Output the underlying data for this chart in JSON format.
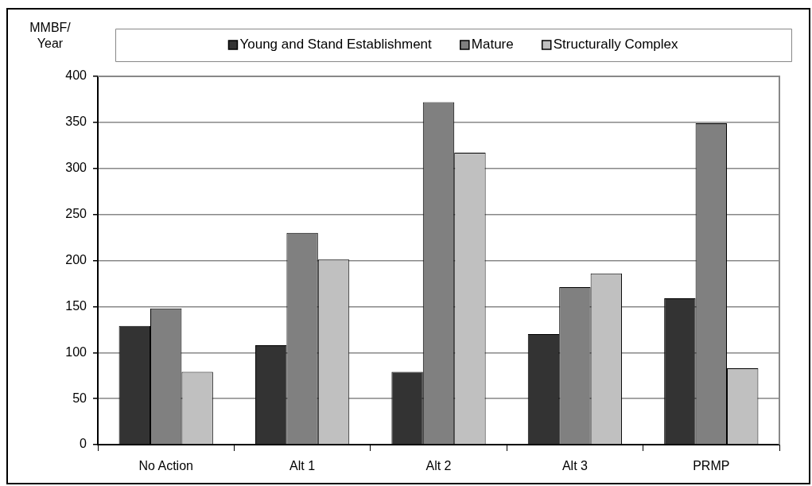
{
  "chart_data": {
    "type": "bar",
    "ylabel": "MMBF/ Year",
    "categories": [
      "No Action",
      "Alt 1",
      "Alt 2",
      "Alt 3",
      "PRMP"
    ],
    "series": [
      {
        "name": "Young and Stand Establishment",
        "color": "#333333",
        "values": [
          129,
          108,
          79,
          120,
          159
        ]
      },
      {
        "name": "Mature",
        "color": "#808080",
        "values": [
          148,
          230,
          372,
          171,
          349
        ]
      },
      {
        "name": "Structurally Complex",
        "color": "#c0c0c0",
        "values": [
          79,
          201,
          317,
          186,
          83
        ]
      }
    ],
    "ylim": [
      0,
      400
    ],
    "yticks": [
      0,
      50,
      100,
      150,
      200,
      250,
      300,
      350,
      400
    ],
    "grid": "y",
    "legend": "top"
  }
}
